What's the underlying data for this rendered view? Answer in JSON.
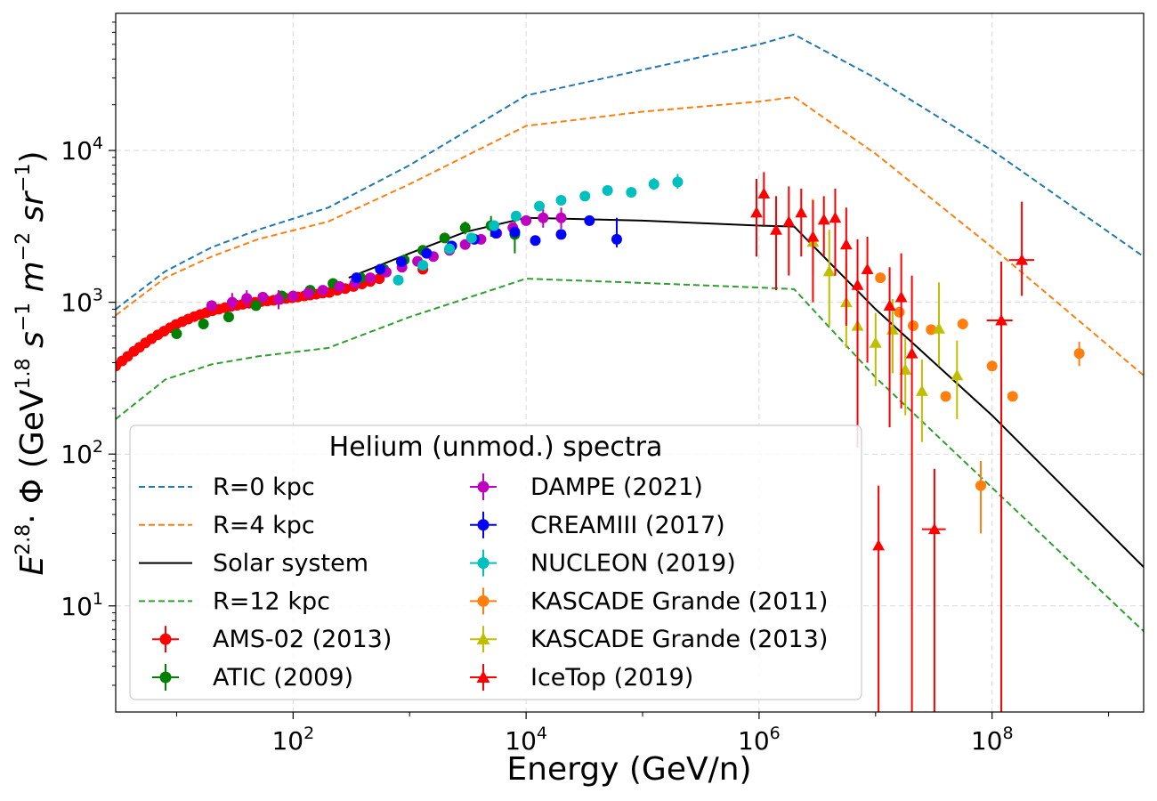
{
  "chart_data": {
    "type": "scatter",
    "title": "",
    "xlabel": "Energy (GeV/n)",
    "ylabel": {
      "base": "E",
      "exp1": "2.8",
      "phi": "· Φ (GeV",
      "exp2": "1.8",
      "s": " s",
      "exp3": "−1",
      "m": " m",
      "exp4": "−2",
      "sr": " sr",
      "exp5": "−1",
      "close": ")"
    },
    "xscale": "log",
    "yscale": "log",
    "xlim": [
      3,
      2000000000
    ],
    "ylim": [
      2,
      80000
    ],
    "x_ticks": [
      {
        "value": 100,
        "base": "10",
        "exp": "2"
      },
      {
        "value": 10000,
        "base": "10",
        "exp": "4"
      },
      {
        "value": 1000000,
        "base": "10",
        "exp": "6"
      },
      {
        "value": 100000000,
        "base": "10",
        "exp": "8"
      }
    ],
    "y_ticks": [
      {
        "value": 10,
        "base": "10",
        "exp": "1"
      },
      {
        "value": 100,
        "base": "10",
        "exp": "2"
      },
      {
        "value": 1000,
        "base": "10",
        "exp": "3"
      },
      {
        "value": 10000,
        "base": "10",
        "exp": "4"
      }
    ],
    "grid": true,
    "legend": {
      "title": "Helium (unmod.) spectra",
      "placement": "lower-left",
      "columns": 2
    },
    "lines": [
      {
        "name": "R=0 kpc",
        "color": "#1f77b4",
        "style": "dashed",
        "x": [
          3,
          8,
          20,
          50,
          200,
          1000,
          10000,
          100000,
          1000000,
          2000000,
          10000000,
          100000000,
          2000000000
        ],
        "y": [
          900,
          1600,
          2300,
          3000,
          4200,
          8000,
          23000,
          34000,
          50000,
          58000,
          30000,
          10000,
          2000
        ]
      },
      {
        "name": "R=4 kpc",
        "color": "#ff7f0e",
        "style": "dashed",
        "x": [
          3,
          8,
          20,
          50,
          200,
          1000,
          10000,
          100000,
          1000000,
          2000000,
          10000000,
          100000000,
          2000000000
        ],
        "y": [
          820,
          1450,
          2000,
          2600,
          3400,
          6000,
          14500,
          18000,
          21000,
          22500,
          9500,
          2300,
          330
        ]
      },
      {
        "name": "Solar system",
        "color": "#000000",
        "style": "solid",
        "x": [
          300,
          1000,
          3000,
          10000,
          100000,
          1000000,
          2000000,
          10000000,
          100000000,
          2000000000
        ],
        "y": [
          1450,
          2100,
          2900,
          3600,
          3450,
          3200,
          3150,
          900,
          180,
          18
        ]
      },
      {
        "name": "R=12 kpc",
        "color": "#2ca02c",
        "style": "dashed",
        "x": [
          3,
          8,
          20,
          50,
          200,
          1000,
          10000,
          100000,
          1000000,
          2000000,
          10000000,
          100000000,
          2000000000
        ],
        "y": [
          170,
          310,
          390,
          440,
          500,
          800,
          1430,
          1340,
          1250,
          1220,
          320,
          60,
          6.8
        ]
      }
    ],
    "series": [
      {
        "name": "AMS-02 (2013)",
        "color": "#ff0000",
        "marker": "circle",
        "points": [
          [
            3,
            380
          ],
          [
            3.4,
            410
          ],
          [
            3.8,
            440
          ],
          [
            4.3,
            475
          ],
          [
            4.8,
            505
          ],
          [
            5.4,
            540
          ],
          [
            6.1,
            575
          ],
          [
            6.9,
            610
          ],
          [
            7.8,
            645
          ],
          [
            8.8,
            680
          ],
          [
            9.9,
            715
          ],
          [
            11.2,
            745
          ],
          [
            12.6,
            775
          ],
          [
            14.2,
            805
          ],
          [
            16,
            830
          ],
          [
            18,
            855
          ],
          [
            20.3,
            880
          ],
          [
            23,
            900
          ],
          [
            26,
            920
          ],
          [
            29.3,
            940
          ],
          [
            33,
            955
          ],
          [
            37,
            970
          ],
          [
            42,
            985
          ],
          [
            47,
            1000
          ],
          [
            53,
            1010
          ],
          [
            60,
            1020
          ],
          [
            68,
            1030
          ],
          [
            77,
            1045
          ],
          [
            87,
            1060
          ],
          [
            98,
            1070
          ],
          [
            110,
            1085
          ],
          [
            125,
            1100
          ],
          [
            140,
            1115
          ],
          [
            158,
            1130
          ],
          [
            180,
            1150
          ],
          [
            205,
            1160
          ],
          [
            240,
            1200
          ],
          [
            280,
            1230
          ],
          [
            330,
            1270
          ],
          [
            390,
            1320
          ],
          [
            460,
            1370
          ],
          [
            550,
            1430
          ],
          [
            1300,
            1650
          ]
        ]
      },
      {
        "name": "ATIC (2009)",
        "color": "#008000",
        "marker": "circle",
        "points": [
          [
            10,
            620
          ],
          [
            17,
            720
          ],
          [
            28,
            800
          ],
          [
            48,
            950
          ],
          [
            80,
            1100
          ],
          [
            140,
            1200
          ],
          [
            220,
            1330
          ],
          [
            380,
            1450
          ],
          [
            600,
            1650
          ],
          [
            900,
            1900
          ],
          [
            1300,
            2200
          ],
          [
            2000,
            2650
          ],
          [
            3000,
            3100
          ],
          [
            5000,
            3200
          ],
          [
            8000,
            2800
          ]
        ],
        "yerr": [
          [
            8000,
            2800,
            2100,
            3500
          ],
          [
            5000,
            3200,
            2700,
            3700
          ],
          [
            3000,
            3100,
            2800,
            3400
          ]
        ]
      },
      {
        "name": "DAMPE (2021)",
        "color": "#bf00bf",
        "marker": "circle",
        "points": [
          [
            20,
            950
          ],
          [
            30,
            1000
          ],
          [
            40,
            1060
          ],
          [
            55,
            1080
          ],
          [
            75,
            1050
          ],
          [
            100,
            1100
          ],
          [
            135,
            1150
          ],
          [
            180,
            1200
          ],
          [
            250,
            1270
          ],
          [
            340,
            1340
          ],
          [
            460,
            1450
          ],
          [
            630,
            1580
          ],
          [
            860,
            1700
          ],
          [
            1170,
            1860
          ],
          [
            1600,
            2000
          ],
          [
            2200,
            2200
          ],
          [
            3000,
            2400
          ],
          [
            4100,
            2600
          ],
          [
            5600,
            2850
          ],
          [
            7700,
            3100
          ],
          [
            10000,
            3450
          ],
          [
            14000,
            3600
          ],
          [
            20000,
            3600
          ]
        ],
        "yerr": [
          [
            30,
            1000,
            870,
            1150
          ],
          [
            40,
            1060,
            920,
            1200
          ],
          [
            75,
            1050,
            900,
            1200
          ],
          [
            14000,
            3600,
            3100,
            4100
          ],
          [
            20000,
            3600,
            3050,
            4200
          ]
        ]
      },
      {
        "name": "CREAMIII (2017)",
        "color": "#0000ff",
        "marker": "circle",
        "points": [
          [
            350,
            1450
          ],
          [
            560,
            1650
          ],
          [
            850,
            1850
          ],
          [
            1400,
            2100
          ],
          [
            2300,
            2350
          ],
          [
            3600,
            2600
          ],
          [
            5500,
            2850
          ],
          [
            8000,
            2900
          ],
          [
            12000,
            2550
          ],
          [
            20000,
            2800
          ],
          [
            35000,
            3450
          ],
          [
            60000,
            2600
          ]
        ],
        "yerr": [
          [
            60000,
            2600,
            2300,
            3600
          ],
          [
            35000,
            3450,
            3200,
            3700
          ]
        ]
      },
      {
        "name": "NUCLEON (2019)",
        "color": "#00bfbf",
        "marker": "circle",
        "points": [
          [
            800,
            1400
          ],
          [
            1300,
            1750
          ],
          [
            2200,
            2250
          ],
          [
            3400,
            2650
          ],
          [
            5300,
            3200
          ],
          [
            8200,
            3700
          ],
          [
            13000,
            4300
          ],
          [
            20000,
            4700
          ],
          [
            32000,
            5000
          ],
          [
            50000,
            5450
          ],
          [
            80000,
            5300
          ],
          [
            125000,
            6000
          ],
          [
            200000,
            6200
          ]
        ],
        "yerr": [
          [
            200000,
            6200,
            5600,
            7000
          ],
          [
            125000,
            6000,
            5500,
            6600
          ]
        ]
      },
      {
        "name": "KASCADE Grande (2011)",
        "color": "#ff7f0e",
        "marker": "circle",
        "points": [
          [
            11000000,
            1450
          ],
          [
            16000000,
            860
          ],
          [
            21000000,
            700
          ],
          [
            30000000,
            660
          ],
          [
            40000000,
            240
          ],
          [
            56000000,
            720
          ],
          [
            80000000,
            62
          ],
          [
            100000000,
            380
          ],
          [
            150000000,
            240
          ],
          [
            560000000,
            460
          ]
        ],
        "yerr": [
          [
            80000000,
            62,
            30,
            90
          ],
          [
            560000000,
            460,
            380,
            550
          ]
        ]
      },
      {
        "name": "KASCADE Grande (2013)",
        "color": "#bfbf00",
        "marker": "triangle",
        "points": [
          [
            2900000,
            2500
          ],
          [
            4000000,
            1600
          ],
          [
            5600000,
            1000
          ],
          [
            7000000,
            700
          ],
          [
            10000000,
            540
          ],
          [
            14000000,
            660
          ],
          [
            18000000,
            360
          ],
          [
            25000000,
            260
          ],
          [
            35000000,
            670
          ],
          [
            50000000,
            330
          ]
        ],
        "yerr": [
          [
            2900000,
            2500,
            1500,
            4800
          ],
          [
            4000000,
            1600,
            700,
            3000
          ],
          [
            5600000,
            1000,
            500,
            1800
          ],
          [
            7000000,
            700,
            400,
            1300
          ],
          [
            10000000,
            540,
            280,
            850
          ],
          [
            14000000,
            660,
            340,
            1050
          ],
          [
            18000000,
            360,
            180,
            580
          ],
          [
            25000000,
            260,
            120,
            420
          ],
          [
            35000000,
            670,
            380,
            1350
          ],
          [
            50000000,
            330,
            170,
            560
          ]
        ]
      },
      {
        "name": "IceTop (2019)",
        "color": "#ff0000",
        "marker": "triangle",
        "points": [
          [
            950000,
            3900
          ],
          [
            1100000,
            5200
          ],
          [
            1400000,
            3000
          ],
          [
            1800000,
            3400
          ],
          [
            2300000,
            3900
          ],
          [
            2900000,
            2700
          ],
          [
            3600000,
            3500
          ],
          [
            4500000,
            3600
          ],
          [
            5600000,
            2400
          ],
          [
            7000000,
            1300
          ],
          [
            8500000,
            1650
          ],
          [
            10600000,
            25
          ],
          [
            13200000,
            950
          ],
          [
            16600000,
            1080
          ],
          [
            20500000,
            460
          ],
          [
            32000000,
            32
          ],
          [
            120000000,
            760
          ],
          [
            180000000,
            1900
          ]
        ],
        "yerr": [
          [
            950000,
            3900,
            2000,
            6500
          ],
          [
            1100000,
            5200,
            3200,
            7200
          ],
          [
            1400000,
            3000,
            1200,
            5000
          ],
          [
            1800000,
            3400,
            1500,
            5800
          ],
          [
            2300000,
            3900,
            2000,
            5600
          ],
          [
            2900000,
            2700,
            1000,
            4700
          ],
          [
            3600000,
            3500,
            2000,
            5000
          ],
          [
            4500000,
            3600,
            1500,
            5600
          ],
          [
            5600000,
            2400,
            700,
            4200
          ],
          [
            7000000,
            1300,
            110,
            2600
          ],
          [
            8500000,
            1650,
            400,
            2700
          ],
          [
            10600000,
            25,
            2,
            62
          ],
          [
            13200000,
            950,
            150,
            1700
          ],
          [
            16600000,
            1080,
            200,
            2100
          ],
          [
            20500000,
            460,
            2,
            1500
          ],
          [
            32000000,
            32,
            2,
            80
          ],
          [
            120000000,
            760,
            2,
            1850
          ],
          [
            180000000,
            1900,
            1100,
            4600
          ]
        ],
        "xerr": [
          [
            32000000,
            32,
            25000000,
            40000000
          ],
          [
            120000000,
            760,
            90000000,
            150000000
          ],
          [
            180000000,
            1900,
            140000000,
            230000000
          ]
        ]
      }
    ]
  }
}
